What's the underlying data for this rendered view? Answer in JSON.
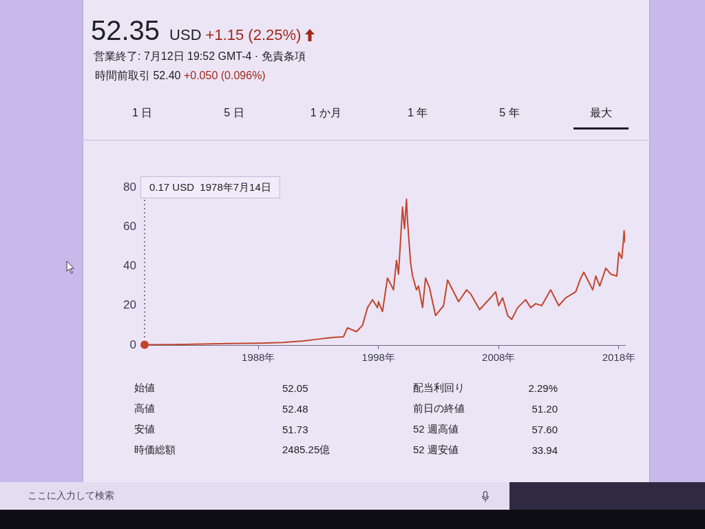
{
  "chart_data": {
    "type": "line",
    "title": "52.35",
    "subtitle": "USD +1.15 (2.25%)",
    "annotations": [
      "営業終了: 7月12日 19:52 GMT-4 · 免責条項",
      "時間前取引 52.40 +0.050 (0.096%)",
      "1 日",
      "5 日",
      "1 か月",
      "1 年",
      "5 年",
      "最大",
      "0.17 USD  1978年7月14日",
      "始値",
      "52.05",
      "高値",
      "52.48",
      "安値",
      "51.73",
      "時価総額",
      "2485.25億",
      "配当利回り",
      "2.29%",
      "前日の終値",
      "51.20",
      "52 週高値",
      "57.60",
      "52 週安値",
      "33.94",
      "ここに入力して検索"
    ],
    "x": [
      "1978-07-14",
      "1981-01",
      "1983-04",
      "1985-08",
      "1988-01",
      "1990-01",
      "1991-10",
      "1993-02",
      "1993-10",
      "1994-07",
      "1995-02",
      "1995-06",
      "1996-03",
      "1996-09",
      "1997-02",
      "1997-07",
      "1997-12",
      "1998-01",
      "1998-05",
      "1998-10",
      "1999-02",
      "1999-04",
      "1999-07",
      "1999-09",
      "2000-01",
      "2000-03",
      "2000-05",
      "2000-06",
      "2000-09",
      "2000-11",
      "2001-03",
      "2001-05",
      "2001-09",
      "2001-12",
      "2002-04",
      "2002-10",
      "2003-06",
      "2003-10",
      "2004-05",
      "2004-09",
      "2005-05",
      "2005-09",
      "2006-06",
      "2007-05",
      "2007-10",
      "2008-01",
      "2008-05",
      "2008-10",
      "2009-02",
      "2009-08",
      "2010-04",
      "2010-09",
      "2011-02",
      "2011-08",
      "2012-05",
      "2013-01",
      "2013-08",
      "2014-06",
      "2014-11",
      "2015-02",
      "2015-06",
      "2015-11",
      "2016-02",
      "2016-06",
      "2016-12",
      "2017-05",
      "2017-11",
      "2018-01",
      "2018-04",
      "2018-05-20",
      "2018-06-10",
      "2018-07-12"
    ],
    "series": [
      {
        "color": "#c2452a",
        "values": [
          0.17,
          0.3,
          0.5,
          0.8,
          1.0,
          1.3,
          2.1,
          3.1,
          3.6,
          4.0,
          4.2,
          8.8,
          6.8,
          10,
          19,
          23,
          19,
          22,
          17,
          34,
          30,
          28,
          43,
          36,
          70,
          59,
          74,
          63,
          42,
          35,
          28,
          30,
          19,
          34,
          29,
          15,
          20,
          33,
          26,
          22,
          28,
          26,
          18,
          24,
          27,
          20,
          24,
          15,
          13,
          19,
          23,
          19,
          21,
          20,
          28,
          20,
          24,
          27,
          34,
          37,
          33,
          28,
          35,
          30,
          39,
          36,
          35,
          47,
          44,
          53,
          58,
          52
        ]
      },
      {
        "type": "scatter",
        "x": [
          "1978-07-14"
        ],
        "values": [
          0.17
        ],
        "color": "#c2452a",
        "marker": "circle"
      }
    ],
    "xlim": [
      "1978-07-14",
      "2018-07-12"
    ],
    "xticks": [
      {
        "value": "1988",
        "label": "1988年"
      },
      {
        "value": "1998",
        "label": "1998年"
      },
      {
        "value": "2008",
        "label": "2008年"
      },
      {
        "value": "2018",
        "label": "2018年"
      }
    ],
    "ylim": [
      0,
      80
    ],
    "yticks": [
      0,
      20,
      40,
      60,
      80
    ],
    "ref_lines": [
      {
        "axis": "x",
        "value": "1978-07-14",
        "line_style": "dotted",
        "color": "#55556a"
      }
    ]
  }
}
